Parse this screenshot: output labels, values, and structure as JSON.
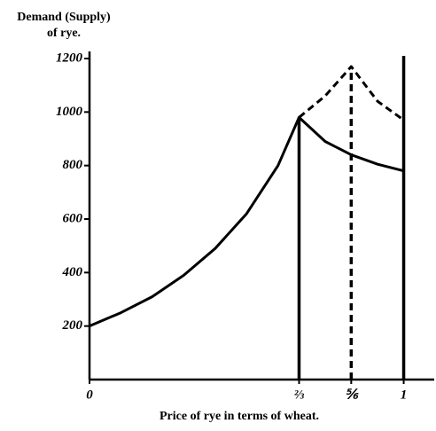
{
  "chart_data": {
    "type": "line",
    "y_label": [
      "Demand (Supply)",
      "of rye."
    ],
    "x_label": "Price of rye in terms of wheat.",
    "xlim": [
      0,
      1.1
    ],
    "ylim": [
      0,
      1200
    ],
    "xticks": [
      0,
      {
        "value": 0.667,
        "label": "⅔"
      },
      {
        "value": 0.833,
        "label": "⅚"
      },
      1
    ],
    "yticks": [
      200,
      400,
      600,
      800,
      1000,
      1200
    ],
    "series": [
      {
        "color": "#000",
        "style": "solid",
        "x": [
          0,
          0.1,
          0.2,
          0.3,
          0.4,
          0.5,
          0.6,
          0.667,
          0.75,
          0.833,
          0.917,
          1
        ],
        "values": [
          200,
          250,
          310,
          390,
          490,
          620,
          800,
          980,
          890,
          840,
          805,
          780
        ]
      },
      {
        "color": "#000",
        "style": "dashed",
        "x": [
          0.667,
          0.75,
          0.833,
          0.917,
          1
        ],
        "values": [
          980,
          1060,
          1170,
          1040,
          970
        ]
      }
    ],
    "verticals": {
      "x": [
        0.667,
        0.833,
        1
      ],
      "top": [
        980,
        1170,
        1210
      ],
      "style": [
        "solid",
        "dashed",
        "solid"
      ]
    }
  }
}
